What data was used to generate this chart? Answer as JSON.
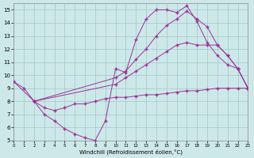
{
  "xlabel": "Windchill (Refroidissement éolien,°C)",
  "bg_color": "#cde8e8",
  "grid_color": "#a0c8c8",
  "line_color": "#993399",
  "xlim": [
    0,
    23
  ],
  "ylim": [
    5,
    15.5
  ],
  "yticks": [
    5,
    6,
    7,
    8,
    9,
    10,
    11,
    12,
    13,
    14,
    15
  ],
  "xticks": [
    0,
    1,
    2,
    3,
    4,
    5,
    6,
    7,
    8,
    9,
    10,
    11,
    12,
    13,
    14,
    15,
    16,
    17,
    18,
    19,
    20,
    21,
    22,
    23
  ],
  "line1_x": [
    0,
    1,
    2,
    3,
    4,
    5,
    6,
    7,
    8,
    9,
    10,
    11,
    12,
    13,
    14,
    15,
    16,
    17,
    18,
    19,
    20,
    21,
    22,
    23
  ],
  "line1_y": [
    9.5,
    9.0,
    8.0,
    7.0,
    6.5,
    5.9,
    5.5,
    5.2,
    5.0,
    6.5,
    10.5,
    10.2,
    12.7,
    14.3,
    15.0,
    15.0,
    14.8,
    15.3,
    14.1,
    12.5,
    11.5,
    10.8,
    10.5,
    9.0
  ],
  "line2_x": [
    0,
    2,
    10,
    11,
    12,
    13,
    14,
    15,
    16,
    17,
    18,
    19,
    20,
    21,
    22,
    23
  ],
  "line2_y": [
    9.5,
    8.0,
    9.8,
    10.3,
    11.2,
    12.0,
    13.0,
    13.8,
    14.3,
    14.9,
    14.3,
    13.7,
    12.3,
    11.5,
    10.5,
    9.0
  ],
  "line3_x": [
    2,
    10,
    11,
    12,
    13,
    14,
    15,
    16,
    17,
    18,
    19,
    20,
    21,
    22,
    23
  ],
  "line3_y": [
    8.0,
    9.3,
    9.8,
    10.3,
    10.8,
    11.3,
    11.8,
    12.3,
    12.5,
    12.3,
    12.3,
    12.3,
    11.5,
    10.5,
    9.0
  ],
  "line4_x": [
    2,
    3,
    4,
    5,
    6,
    7,
    8,
    9,
    10,
    11,
    12,
    13,
    14,
    15,
    16,
    17,
    18,
    19,
    20,
    21,
    22,
    23
  ],
  "line4_y": [
    8.0,
    7.5,
    7.3,
    7.5,
    7.8,
    7.8,
    8.0,
    8.2,
    8.3,
    8.3,
    8.4,
    8.5,
    8.5,
    8.6,
    8.7,
    8.8,
    8.8,
    8.9,
    9.0,
    9.0,
    9.0,
    9.0
  ]
}
